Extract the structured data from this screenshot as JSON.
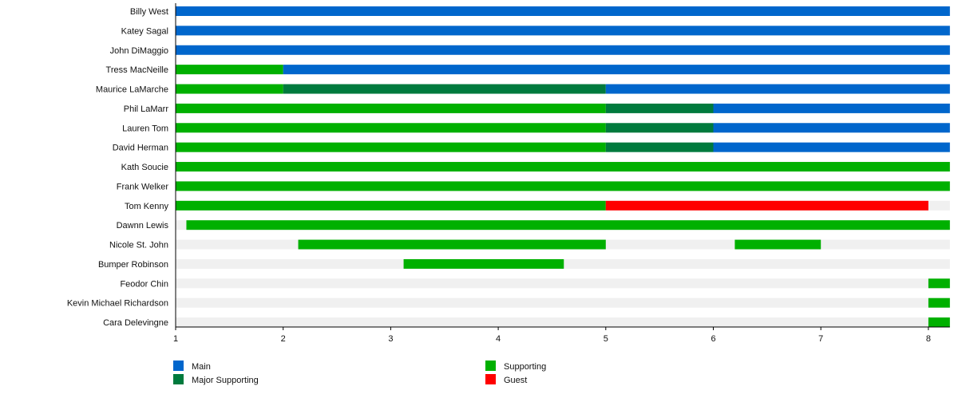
{
  "chart_data": {
    "type": "bar",
    "subtype": "timeline",
    "xlim": [
      1,
      8.2
    ],
    "x_ticks": [
      "1",
      "2",
      "3",
      "4",
      "5",
      "6",
      "7",
      "8"
    ],
    "grid": false,
    "legend_position": "bottom",
    "colors": {
      "Main": "#0066cc",
      "Major Supporting": "#007a3d",
      "Supporting": "#00b000",
      "Guest": "#ff0000",
      "background": "#f0f0f0"
    },
    "legend": [
      "Main",
      "Major Supporting",
      "Supporting",
      "Guest"
    ],
    "rows": [
      {
        "name": "Billy West",
        "segments": [
          {
            "role": "Main",
            "from": 1,
            "to": 8.2
          }
        ]
      },
      {
        "name": "Katey Sagal",
        "segments": [
          {
            "role": "Main",
            "from": 1,
            "to": 8.2
          }
        ]
      },
      {
        "name": "John DiMaggio",
        "segments": [
          {
            "role": "Main",
            "from": 1,
            "to": 8.2
          }
        ]
      },
      {
        "name": "Tress MacNeille",
        "segments": [
          {
            "role": "Supporting",
            "from": 1,
            "to": 2
          },
          {
            "role": "Main",
            "from": 2,
            "to": 8.2
          }
        ]
      },
      {
        "name": "Maurice LaMarche",
        "segments": [
          {
            "role": "Supporting",
            "from": 1,
            "to": 2
          },
          {
            "role": "Major Supporting",
            "from": 2,
            "to": 5
          },
          {
            "role": "Main",
            "from": 5,
            "to": 8.2
          }
        ]
      },
      {
        "name": "Phil LaMarr",
        "segments": [
          {
            "role": "Supporting",
            "from": 1,
            "to": 5
          },
          {
            "role": "Major Supporting",
            "from": 5,
            "to": 6
          },
          {
            "role": "Main",
            "from": 6,
            "to": 8.2
          }
        ]
      },
      {
        "name": "Lauren Tom",
        "segments": [
          {
            "role": "Supporting",
            "from": 1,
            "to": 5
          },
          {
            "role": "Major Supporting",
            "from": 5,
            "to": 6
          },
          {
            "role": "Main",
            "from": 6,
            "to": 8.2
          }
        ]
      },
      {
        "name": "David Herman",
        "segments": [
          {
            "role": "Supporting",
            "from": 1,
            "to": 5
          },
          {
            "role": "Major Supporting",
            "from": 5,
            "to": 6
          },
          {
            "role": "Main",
            "from": 6,
            "to": 8.2
          }
        ]
      },
      {
        "name": "Kath Soucie",
        "segments": [
          {
            "role": "Supporting",
            "from": 1,
            "to": 8.2
          }
        ]
      },
      {
        "name": "Frank Welker",
        "segments": [
          {
            "role": "Supporting",
            "from": 1,
            "to": 8.2
          }
        ]
      },
      {
        "name": "Tom Kenny",
        "segments": [
          {
            "role": "Supporting",
            "from": 1,
            "to": 5
          },
          {
            "role": "Guest",
            "from": 5,
            "to": 8
          }
        ]
      },
      {
        "name": "Dawnn Lewis",
        "segments": [
          {
            "role": "Supporting",
            "from": 1.1,
            "to": 8.2
          }
        ]
      },
      {
        "name": "Nicole St. John",
        "segments": [
          {
            "role": "Supporting",
            "from": 2.14,
            "to": 5
          },
          {
            "role": "Supporting",
            "from": 6.2,
            "to": 7
          }
        ]
      },
      {
        "name": "Bumper Robinson",
        "segments": [
          {
            "role": "Supporting",
            "from": 3.12,
            "to": 4.61
          }
        ]
      },
      {
        "name": "Feodor Chin",
        "segments": [
          {
            "role": "Supporting",
            "from": 8,
            "to": 8.2
          }
        ]
      },
      {
        "name": "Kevin Michael Richardson",
        "segments": [
          {
            "role": "Supporting",
            "from": 8,
            "to": 8.2
          }
        ]
      },
      {
        "name": "Cara Delevingne",
        "segments": [
          {
            "role": "Supporting",
            "from": 8,
            "to": 8.2
          }
        ]
      }
    ]
  }
}
